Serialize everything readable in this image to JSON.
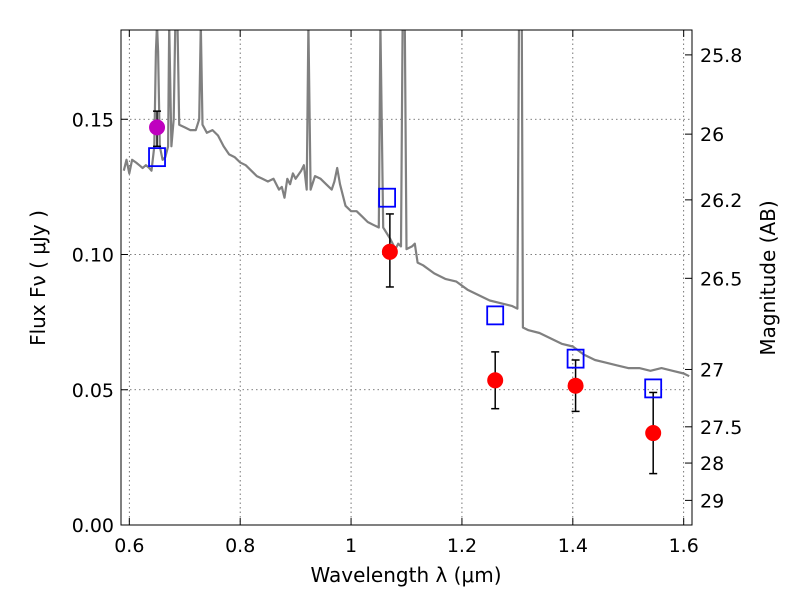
{
  "chart_data": {
    "type": "scatter",
    "xlabel": "Wavelength λ (μm)",
    "ylabel": "Flux Fν ( μJy )",
    "y2label": "Magnitude (AB)",
    "xlim": [
      0.585,
      1.615
    ],
    "ylim": [
      0.0,
      0.183
    ],
    "x_ticks": [
      0.6,
      0.8,
      1.0,
      1.2,
      1.4,
      1.6
    ],
    "x_tick_labels": [
      "0.6",
      "0.8",
      "1",
      "1.2",
      "1.4",
      "1.6"
    ],
    "y_ticks": [
      0.0,
      0.05,
      0.1,
      0.15
    ],
    "y_tick_labels": [
      "0.00",
      "0.05",
      "0.10",
      "0.15"
    ],
    "y2_ticks": [
      {
        "label": "25.8",
        "flux": 0.1738
      },
      {
        "label": "26",
        "flux": 0.1445
      },
      {
        "label": "26.2",
        "flux": 0.1202
      },
      {
        "label": "26.5",
        "flux": 0.0912
      },
      {
        "label": "27",
        "flux": 0.0575
      },
      {
        "label": "27.5",
        "flux": 0.0363
      },
      {
        "label": "28",
        "flux": 0.0229
      },
      {
        "label": "29",
        "flux": 0.0091
      }
    ],
    "grid": true,
    "colors": {
      "spectrum": "#808080",
      "magenta_point": "#bf00bf",
      "red_points": "#ff0000",
      "model_boxes": "#0000ff",
      "errorbar": "#000000"
    },
    "series": [
      {
        "marker": "circle",
        "color": "#bf00bf",
        "points": [
          {
            "x": 0.65,
            "y": 0.147,
            "yerr": [
              0.14,
              0.153
            ]
          }
        ]
      },
      {
        "marker": "circle",
        "color": "#ff0000",
        "points": [
          {
            "x": 1.07,
            "y": 0.101,
            "yerr": [
              0.088,
              0.115
            ]
          },
          {
            "x": 1.26,
            "y": 0.0535,
            "yerr": [
              0.043,
              0.064
            ]
          },
          {
            "x": 1.405,
            "y": 0.0515,
            "yerr": [
              0.042,
              0.061
            ]
          },
          {
            "x": 1.545,
            "y": 0.034,
            "yerr": [
              0.019,
              0.049
            ]
          }
        ]
      },
      {
        "marker": "square-open",
        "color": "#0000ff",
        "points": [
          {
            "x": 0.65,
            "y": 0.136
          },
          {
            "x": 1.065,
            "y": 0.121
          },
          {
            "x": 1.26,
            "y": 0.0775
          },
          {
            "x": 1.405,
            "y": 0.0615
          },
          {
            "x": 1.545,
            "y": 0.0505
          }
        ]
      },
      {
        "marker": "line",
        "color": "#808080",
        "points": [
          [
            0.59,
            0.131
          ],
          [
            0.595,
            0.135
          ],
          [
            0.6,
            0.13
          ],
          [
            0.605,
            0.135
          ],
          [
            0.612,
            0.134
          ],
          [
            0.618,
            0.133
          ],
          [
            0.624,
            0.132
          ],
          [
            0.63,
            0.133
          ],
          [
            0.636,
            0.132
          ],
          [
            0.64,
            0.131
          ],
          [
            0.645,
            0.14
          ],
          [
            0.648,
            0.175
          ],
          [
            0.65,
            0.185
          ],
          [
            0.652,
            0.175
          ],
          [
            0.655,
            0.14
          ],
          [
            0.66,
            0.135
          ],
          [
            0.665,
            0.136
          ],
          [
            0.67,
            0.14
          ],
          [
            0.672,
            0.185
          ],
          [
            0.676,
            0.14
          ],
          [
            0.68,
            0.15
          ],
          [
            0.683,
            0.185
          ],
          [
            0.687,
            0.185
          ],
          [
            0.69,
            0.148
          ],
          [
            0.7,
            0.147
          ],
          [
            0.71,
            0.146
          ],
          [
            0.72,
            0.146
          ],
          [
            0.726,
            0.15
          ],
          [
            0.729,
            0.185
          ],
          [
            0.732,
            0.148
          ],
          [
            0.74,
            0.145
          ],
          [
            0.75,
            0.146
          ],
          [
            0.76,
            0.144
          ],
          [
            0.77,
            0.14
          ],
          [
            0.78,
            0.137
          ],
          [
            0.79,
            0.136
          ],
          [
            0.8,
            0.134
          ],
          [
            0.81,
            0.133
          ],
          [
            0.82,
            0.131
          ],
          [
            0.83,
            0.129
          ],
          [
            0.84,
            0.128
          ],
          [
            0.85,
            0.127
          ],
          [
            0.86,
            0.128
          ],
          [
            0.87,
            0.124
          ],
          [
            0.875,
            0.125
          ],
          [
            0.88,
            0.121
          ],
          [
            0.885,
            0.128
          ],
          [
            0.89,
            0.126
          ],
          [
            0.895,
            0.13
          ],
          [
            0.9,
            0.128
          ],
          [
            0.91,
            0.131
          ],
          [
            0.915,
            0.133
          ],
          [
            0.92,
            0.124
          ],
          [
            0.923,
            0.185
          ],
          [
            0.927,
            0.124
          ],
          [
            0.935,
            0.129
          ],
          [
            0.945,
            0.128
          ],
          [
            0.955,
            0.126
          ],
          [
            0.965,
            0.124
          ],
          [
            0.97,
            0.127
          ],
          [
            0.975,
            0.132
          ],
          [
            0.98,
            0.126
          ],
          [
            0.99,
            0.118
          ],
          [
            1.0,
            0.116
          ],
          [
            1.01,
            0.116
          ],
          [
            1.02,
            0.114
          ],
          [
            1.03,
            0.112
          ],
          [
            1.04,
            0.111
          ],
          [
            1.05,
            0.11
          ],
          [
            1.053,
            0.185
          ],
          [
            1.058,
            0.11
          ],
          [
            1.07,
            0.106
          ],
          [
            1.08,
            0.102
          ],
          [
            1.085,
            0.104
          ],
          [
            1.09,
            0.103
          ],
          [
            1.093,
            0.185
          ],
          [
            1.097,
            0.185
          ],
          [
            1.1,
            0.102
          ],
          [
            1.11,
            0.103
          ],
          [
            1.115,
            0.104
          ],
          [
            1.12,
            0.097
          ],
          [
            1.13,
            0.096
          ],
          [
            1.15,
            0.093
          ],
          [
            1.17,
            0.091
          ],
          [
            1.19,
            0.09
          ],
          [
            1.21,
            0.087
          ],
          [
            1.23,
            0.085
          ],
          [
            1.25,
            0.083
          ],
          [
            1.27,
            0.082
          ],
          [
            1.29,
            0.081
          ],
          [
            1.3,
            0.08
          ],
          [
            1.303,
            0.185
          ],
          [
            1.308,
            0.185
          ],
          [
            1.31,
            0.073
          ],
          [
            1.32,
            0.072
          ],
          [
            1.34,
            0.071
          ],
          [
            1.36,
            0.069
          ],
          [
            1.38,
            0.067
          ],
          [
            1.4,
            0.066
          ],
          [
            1.42,
            0.063
          ],
          [
            1.44,
            0.061
          ],
          [
            1.46,
            0.06
          ],
          [
            1.48,
            0.059
          ],
          [
            1.5,
            0.058
          ],
          [
            1.52,
            0.058
          ],
          [
            1.54,
            0.057
          ],
          [
            1.56,
            0.058
          ],
          [
            1.58,
            0.057
          ],
          [
            1.6,
            0.056
          ],
          [
            1.61,
            0.055
          ]
        ]
      }
    ]
  }
}
